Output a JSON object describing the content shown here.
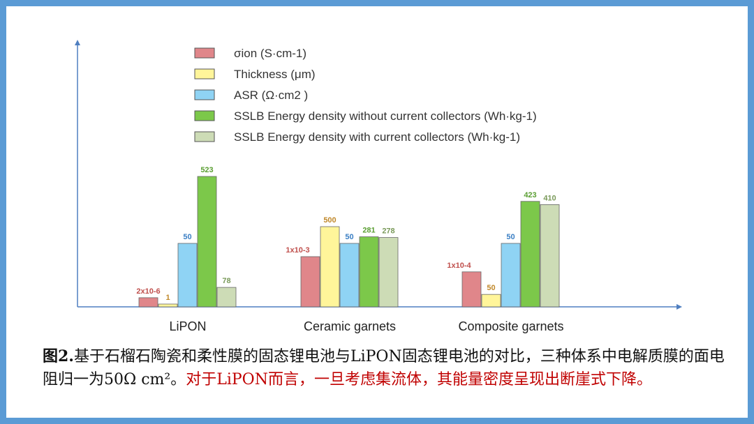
{
  "chart_data": {
    "type": "bar",
    "categories": [
      "LiPON",
      "Ceramic garnets",
      "Composite garnets"
    ],
    "series": [
      {
        "name": "σion (S·cm-1)",
        "color": "#e0868a",
        "values": [
          2e-06,
          0.001,
          0.0001
        ],
        "labels": [
          "2x10-6",
          "1x10-3",
          "1x10-4"
        ]
      },
      {
        "name": "Thickness (μm)",
        "color": "#fff59a",
        "values": [
          1,
          500,
          50
        ],
        "labels": [
          "1",
          "500",
          "50"
        ]
      },
      {
        "name": "ASR (Ω·cm2 )",
        "color": "#8fd3f4",
        "values": [
          50,
          50,
          50
        ],
        "labels": [
          "50",
          "50",
          "50"
        ]
      },
      {
        "name": "SSLB Energy density without current collectors (Wh·kg-1)",
        "color": "#7cc84a",
        "values": [
          523,
          281,
          423
        ],
        "labels": [
          "523",
          "281",
          "423"
        ]
      },
      {
        "name": "SSLB Energy density with current collectors (Wh·kg-1)",
        "color": "#cddcb6",
        "values": [
          78,
          278,
          410
        ],
        "labels": [
          "78",
          "278",
          "410"
        ]
      }
    ],
    "legend_position": "top-center",
    "grid": false
  },
  "caption": {
    "fig_label": "图2.",
    "black_text": "基于石榴石陶瓷和柔性膜的固态锂电池与LiPON固态锂电池的对比，三种体系中电解质膜的面电阻归一为50Ω cm²。",
    "red_text": "对于LiPON而言，一旦考虑集流体，其能量密度呈现出断崖式下降。"
  }
}
